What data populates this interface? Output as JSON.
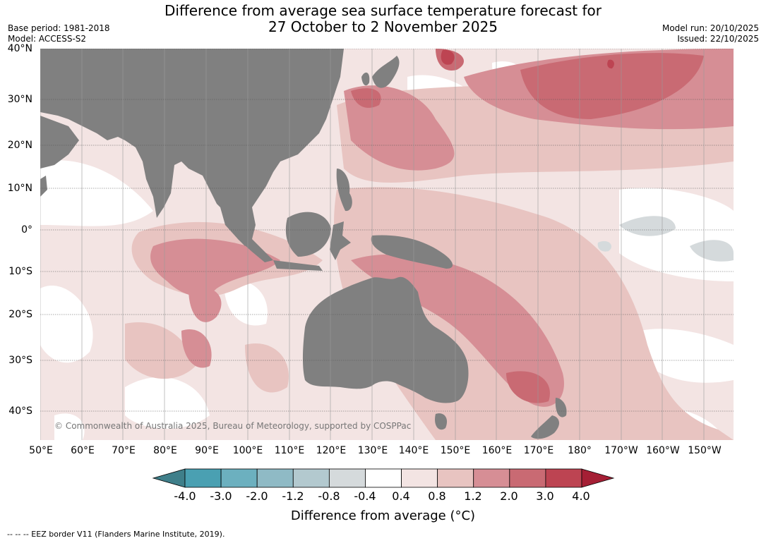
{
  "title": {
    "line1": "Difference from average sea surface temperature forecast for",
    "line2": "27 October to 2 November 2025"
  },
  "meta": {
    "base_period": "Base period: 1981-2018",
    "model": "Model: ACCESS-S2",
    "model_run": "Model run: 20/10/2025",
    "issued": "Issued: 22/10/2025"
  },
  "axes": {
    "lat_labels": [
      "40°N",
      "30°N",
      "20°N",
      "10°N",
      "0°",
      "10°S",
      "20°S",
      "30°S",
      "40°S"
    ],
    "lon_labels": [
      "50°E",
      "60°E",
      "70°E",
      "80°E",
      "90°E",
      "100°E",
      "110°E",
      "120°E",
      "130°E",
      "140°E",
      "150°E",
      "160°E",
      "170°E",
      "180°",
      "170°W",
      "160°W",
      "150°W"
    ]
  },
  "copyright": "© Commonwealth of Australia 2025, Bureau of Meteorology, supported by COSPPac",
  "colorbar": {
    "ticks": [
      "-4.0",
      "-3.0",
      "-2.0",
      "-1.2",
      "-0.8",
      "-0.4",
      "0.4",
      "0.8",
      "1.2",
      "2.0",
      "3.0",
      "4.0"
    ],
    "label": "Difference from average (°C)",
    "colors": {
      "below_min": "#3f7f8a",
      "bins": [
        "#4aa0b2",
        "#6cb0bf",
        "#8fbac5",
        "#b3c9cf",
        "#d5dadc",
        "#ffffff",
        "#f3e4e3",
        "#e8c4c1",
        "#d68e95",
        "#c96a73",
        "#bd4452"
      ],
      "above_max": "#a51f35",
      "land": "#808080"
    }
  },
  "eez_note": "--  --  -- EEZ border V11 (Flanders Marine Institute, 2019)."
}
